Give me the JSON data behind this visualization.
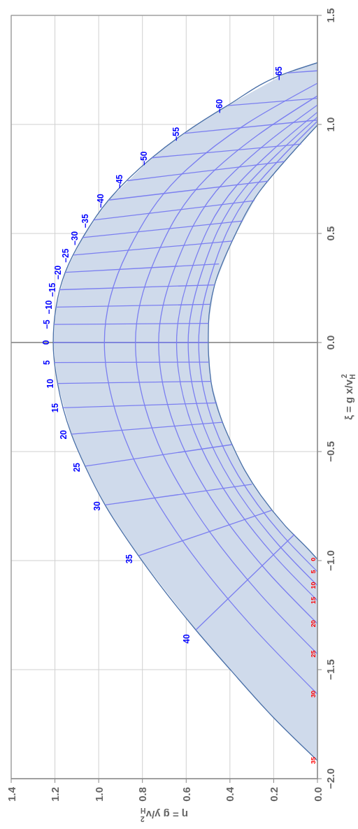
{
  "chart_data": {
    "type": "line",
    "orientation": "horizontal",
    "xlabel": "η = g y/v$_{H}$$^{2}$",
    "ylabel": "ξ = g x/v$_{H}$$^{2}$",
    "xlim": [
      1.4,
      0
    ],
    "ylim": [
      -2,
      1.5
    ],
    "xticks": [
      {
        "value": 1.4,
        "label": "1.4"
      },
      {
        "value": 1.2,
        "label": "1.2"
      },
      {
        "value": 1,
        "label": "1.0"
      },
      {
        "value": 0.8,
        "label": "0.8"
      },
      {
        "value": 0.6,
        "label": "0.6"
      },
      {
        "value": 0.4,
        "label": "0.4"
      },
      {
        "value": 0.2,
        "label": "0.2"
      },
      {
        "value": 0,
        "label": "0.0"
      }
    ],
    "yticks": [
      {
        "value": -2,
        "label": "−2.0"
      },
      {
        "value": -1.5,
        "label": "−1.5"
      },
      {
        "value": -1,
        "label": "−1.0"
      },
      {
        "value": -0.5,
        "label": "−0.5"
      },
      {
        "value": 0,
        "label": "0.0"
      },
      {
        "value": 0.5,
        "label": "0.5"
      },
      {
        "value": 1,
        "label": "1.0"
      },
      {
        "value": 1.5,
        "label": "1.5"
      }
    ],
    "grid": true,
    "legend": false,
    "marker": "none",
    "line_style": "solid",
    "ref_lines": [
      {
        "axis": "y",
        "value": 0,
        "color": "#555555"
      }
    ],
    "series": [
      {
        "name": "0",
        "color": "#4a70a8",
        "x": [
          -0.994,
          -0.955,
          -0.841,
          -0.701,
          -0.586,
          -0.468,
          -0.366,
          -0.182,
          0,
          0.083,
          0.264,
          0.471,
          0.688,
          0.831,
          0.997
        ],
        "values": [
          0,
          0.035,
          0.147,
          0.259,
          0.332,
          0.39,
          0.434,
          0.486,
          0.499,
          0.498,
          0.47,
          0.387,
          0.268,
          0.15,
          0
        ]
      },
      {
        "name": "5",
        "color": "#7b7ff0",
        "x": [
          -1.051,
          -0.882,
          -0.61,
          -0.379,
          0,
          0.302,
          0.698,
          0.847,
          1.015
        ],
        "values": [
          0,
          0.162,
          0.362,
          0.473,
          0.543,
          0.489,
          0.298,
          0.166,
          0
        ]
      },
      {
        "name": "10",
        "color": "#7b7ff0",
        "x": [
          -1.114,
          -0.927,
          -0.637,
          -0.393,
          0,
          0.315,
          0.709,
          0.864,
          1.034
        ],
        "values": [
          0,
          0.179,
          0.395,
          0.516,
          0.591,
          0.531,
          0.332,
          0.184,
          0
        ]
      },
      {
        "name": "15",
        "color": "#7b7ff0",
        "x": [
          -1.183,
          -0.977,
          -0.666,
          -0.408,
          0,
          0.329,
          0.721,
          0.883,
          1.056
        ],
        "values": [
          0,
          0.198,
          0.432,
          0.563,
          0.644,
          0.578,
          0.368,
          0.204,
          0
        ]
      },
      {
        "name": "20",
        "color": "#7b7ff0",
        "x": [
          -1.289,
          -1.053,
          -0.711,
          -0.431,
          0,
          0.351,
          0.739,
          0.913,
          1.089
        ],
        "values": [
          0,
          0.227,
          0.488,
          0.635,
          0.726,
          0.649,
          0.424,
          0.234,
          0
        ]
      },
      {
        "name": "25",
        "color": "#7b7ff0",
        "x": [
          -1.428,
          -1.152,
          -0.77,
          -0.462,
          0,
          0.38,
          0.763,
          0.951,
          1.131
        ],
        "values": [
          0,
          0.264,
          0.56,
          0.729,
          0.832,
          0.743,
          0.498,
          0.273,
          0
        ]
      },
      {
        "name": "30",
        "color": "#7b7ff0",
        "x": [
          -1.612,
          -1.285,
          -0.849,
          -0.503,
          0,
          0.418,
          0.795,
          1.002,
          1.189
        ],
        "values": [
          0,
          0.314,
          0.658,
          0.854,
          0.974,
          0.867,
          0.596,
          0.326,
          0
        ]
      },
      {
        "name": "35",
        "color": "#4a70a8",
        "x": [
          -1.917,
          -1.726,
          -1.503,
          -1.318,
          -0.978,
          -0.745,
          -0.57,
          -0.42,
          -0.188,
          0,
          0.162,
          0.322,
          0.481,
          0.653,
          0.847,
          0.959,
          1.086,
          1.236,
          1.283
        ],
        "values": [
          0,
          0.195,
          0.396,
          0.556,
          0.818,
          0.971,
          1.061,
          1.125,
          1.188,
          1.208,
          1.195,
          1.153,
          1.073,
          0.955,
          0.757,
          0.61,
          0.412,
          0.141,
          0
        ]
      },
      {
        "name": "−65",
        "color": "#7b7ff0",
        "x": [
          1.236,
          1.246
        ],
        "values": [
          0.141,
          0
        ]
      },
      {
        "name": "−60",
        "color": "#7b7ff0",
        "x": [
          1.086,
          1.12
        ],
        "values": [
          0.412,
          0
        ]
      },
      {
        "name": "−55",
        "color": "#7b7ff0",
        "x": [
          0.959,
          1.02
        ],
        "values": [
          0.61,
          0
        ]
      },
      {
        "name": "−50",
        "color": "#7b7ff0",
        "x": [
          0.847,
          0.91
        ],
        "values": [
          0.757,
          0.075
        ]
      },
      {
        "name": "−45",
        "color": "#7b7ff0",
        "x": [
          0.742,
          0.83
        ],
        "values": [
          0.869,
          0.151
        ]
      },
      {
        "name": "−40",
        "color": "#7b7ff0",
        "x": [
          0.653,
          0.74
        ],
        "values": [
          0.955,
          0.226
        ]
      },
      {
        "name": "−35",
        "color": "#7b7ff0",
        "x": [
          0.561,
          0.65
        ],
        "values": [
          1.026,
          0.289
        ]
      },
      {
        "name": "−30",
        "color": "#7b7ff0",
        "x": [
          0.481,
          0.557
        ],
        "values": [
          1.073,
          0.342
        ]
      },
      {
        "name": "−25",
        "color": "#7b7ff0",
        "x": [
          0.401,
          0.465
        ],
        "values": [
          1.115,
          0.39
        ]
      },
      {
        "name": "−20",
        "color": "#7b7ff0",
        "x": [
          0.322,
          0.36
        ],
        "values": [
          1.153,
          0.45
        ]
      },
      {
        "name": "−15",
        "color": "#7b7ff0",
        "x": [
          0.242,
          0.264
        ],
        "values": [
          1.179,
          0.47
        ]
      },
      {
        "name": "−10",
        "color": "#7b7ff0",
        "x": [
          0.162,
          0.175
        ],
        "values": [
          1.195,
          0.492
        ]
      },
      {
        "name": "−5",
        "color": "#7b7ff0",
        "x": [
          0.083,
          0.088
        ],
        "values": [
          1.204,
          0.497
        ]
      },
      {
        "name": "0",
        "color": "#7b7ff0",
        "x": [
          0,
          0
        ],
        "values": [
          1.208,
          0.499
        ]
      },
      {
        "name": "5",
        "color": "#7b7ff0",
        "x": [
          -0.092,
          -0.09
        ],
        "values": [
          1.204,
          0.496
        ]
      },
      {
        "name": "10",
        "color": "#7b7ff0",
        "x": [
          -0.188,
          -0.178
        ],
        "values": [
          1.188,
          0.487
        ]
      },
      {
        "name": "15",
        "color": "#7b7ff0",
        "x": [
          -0.299,
          -0.277
        ],
        "values": [
          1.166,
          0.46
        ]
      },
      {
        "name": "20",
        "color": "#7b7ff0",
        "x": [
          -0.42,
          -0.366
        ],
        "values": [
          1.125,
          0.434
        ]
      },
      {
        "name": "25",
        "color": "#7b7ff0",
        "x": [
          -0.567,
          -0.468
        ],
        "values": [
          1.061,
          0.39
        ]
      },
      {
        "name": "30",
        "color": "#7b7ff0",
        "x": [
          -0.745,
          -0.65
        ],
        "values": [
          0.971,
          0.3
        ]
      },
      {
        "name": "35",
        "color": "#7b7ff0",
        "x": [
          -0.978,
          -0.77
        ],
        "values": [
          0.818,
          0.21
        ]
      },
      {
        "name": "40",
        "color": "#7b7ff0",
        "x": [
          -1.318,
          -0.88
        ],
        "values": [
          0.556,
          0.105
        ]
      }
    ]
  }
}
